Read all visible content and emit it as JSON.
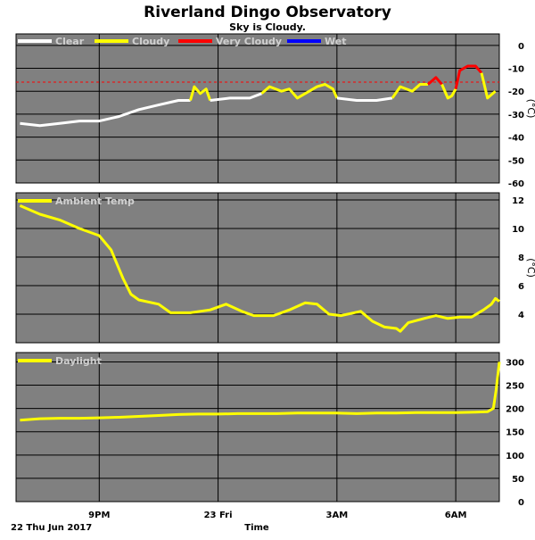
{
  "title": "Riverland Dingo Observatory",
  "subtitle": "Sky is Cloudy.",
  "x_axis": {
    "title": "Time",
    "date_label": "22 Thu Jun 2017",
    "ticks": [
      {
        "label": "9PM",
        "hour": 21
      },
      {
        "label": "23 Fri",
        "hour": 24
      },
      {
        "label": "3AM",
        "hour": 27
      },
      {
        "label": "6AM",
        "hour": 30
      }
    ],
    "range": [
      18.9,
      31.1
    ]
  },
  "colors": {
    "panel_bg": "#808080",
    "grid": "#000000",
    "clear": "#ffffff",
    "cloudy": "#ffff00",
    "very_cloudy": "#ff0000",
    "wet": "#0000ff",
    "ambient": "#ffff00",
    "daylight": "#ffff00",
    "threshold": "#ff0000"
  },
  "chart_data": [
    {
      "type": "line",
      "name": "sky",
      "ylabel": "(°C)",
      "ylim": [
        -60,
        5
      ],
      "yticks": [
        0,
        -10,
        -20,
        -30,
        -40,
        -50,
        -60
      ],
      "grid": true,
      "legend_position": "top-left",
      "legend": [
        "Clear",
        "Cloudy",
        "Very Cloudy",
        "Wet"
      ],
      "threshold": -16,
      "series": [
        {
          "condition": "clear",
          "points": [
            [
              19.0,
              -34
            ],
            [
              19.5,
              -35
            ],
            [
              20.0,
              -34
            ],
            [
              20.5,
              -33
            ],
            [
              21.0,
              -33
            ],
            [
              21.5,
              -31
            ],
            [
              22.0,
              -28
            ],
            [
              22.5,
              -26
            ],
            [
              23.0,
              -24
            ],
            [
              23.3,
              -24
            ]
          ]
        },
        {
          "condition": "cloudy",
          "points": [
            [
              23.3,
              -24
            ],
            [
              23.4,
              -18
            ],
            [
              23.55,
              -21
            ],
            [
              23.7,
              -19
            ],
            [
              23.8,
              -24
            ]
          ]
        },
        {
          "condition": "clear",
          "points": [
            [
              23.8,
              -24
            ],
            [
              24.3,
              -23
            ],
            [
              24.8,
              -23
            ],
            [
              25.1,
              -21
            ]
          ]
        },
        {
          "condition": "cloudy",
          "points": [
            [
              25.1,
              -21
            ],
            [
              25.3,
              -18
            ],
            [
              25.6,
              -20
            ],
            [
              25.8,
              -19
            ],
            [
              26.0,
              -23
            ],
            [
              26.3,
              -20
            ],
            [
              26.5,
              -18
            ],
            [
              26.7,
              -17
            ],
            [
              26.9,
              -19
            ],
            [
              27.0,
              -23
            ]
          ]
        },
        {
          "condition": "clear",
          "points": [
            [
              27.0,
              -23
            ],
            [
              27.5,
              -24
            ],
            [
              28.0,
              -24
            ],
            [
              28.4,
              -23
            ]
          ]
        },
        {
          "condition": "cloudy",
          "points": [
            [
              28.4,
              -23
            ],
            [
              28.6,
              -18
            ],
            [
              28.9,
              -20
            ],
            [
              29.1,
              -17
            ],
            [
              29.3,
              -17
            ]
          ]
        },
        {
          "condition": "very_cloudy",
          "points": [
            [
              29.3,
              -17
            ],
            [
              29.5,
              -14
            ],
            [
              29.65,
              -17
            ]
          ]
        },
        {
          "condition": "cloudy",
          "points": [
            [
              29.65,
              -17
            ],
            [
              29.8,
              -23
            ],
            [
              29.9,
              -22
            ],
            [
              30.0,
              -19
            ]
          ]
        },
        {
          "condition": "very_cloudy",
          "points": [
            [
              30.0,
              -19
            ],
            [
              30.1,
              -11
            ],
            [
              30.3,
              -9
            ],
            [
              30.5,
              -9
            ],
            [
              30.65,
              -12
            ]
          ]
        },
        {
          "condition": "cloudy",
          "points": [
            [
              30.65,
              -12
            ],
            [
              30.8,
              -23
            ],
            [
              31.0,
              -20
            ]
          ]
        }
      ]
    },
    {
      "type": "line",
      "name": "ambient",
      "legend": "Ambient Temp",
      "ylabel": "(°C)",
      "ylim": [
        2,
        12.5
      ],
      "yticks": [
        12,
        10,
        8,
        6,
        4
      ],
      "grid": true,
      "legend_position": "top-left",
      "points": [
        [
          19.0,
          11.6
        ],
        [
          19.5,
          11.0
        ],
        [
          20.0,
          10.6
        ],
        [
          20.5,
          10.0
        ],
        [
          21.0,
          9.5
        ],
        [
          21.3,
          8.5
        ],
        [
          21.6,
          6.5
        ],
        [
          21.8,
          5.4
        ],
        [
          22.0,
          5.0
        ],
        [
          22.5,
          4.7
        ],
        [
          22.8,
          4.1
        ],
        [
          23.3,
          4.1
        ],
        [
          23.8,
          4.3
        ],
        [
          24.2,
          4.7
        ],
        [
          24.6,
          4.2
        ],
        [
          24.9,
          3.9
        ],
        [
          25.4,
          3.9
        ],
        [
          25.8,
          4.3
        ],
        [
          26.2,
          4.8
        ],
        [
          26.5,
          4.7
        ],
        [
          26.8,
          4.0
        ],
        [
          27.1,
          3.9
        ],
        [
          27.6,
          4.2
        ],
        [
          27.9,
          3.5
        ],
        [
          28.2,
          3.1
        ],
        [
          28.5,
          3.0
        ],
        [
          28.6,
          2.8
        ],
        [
          28.8,
          3.4
        ],
        [
          29.2,
          3.7
        ],
        [
          29.5,
          3.9
        ],
        [
          29.8,
          3.7
        ],
        [
          30.1,
          3.8
        ],
        [
          30.4,
          3.8
        ],
        [
          30.7,
          4.3
        ],
        [
          30.9,
          4.7
        ],
        [
          31.0,
          5.1
        ],
        [
          31.1,
          4.9
        ]
      ]
    },
    {
      "type": "line",
      "name": "daylight",
      "legend": "Daylight",
      "ylim": [
        0,
        320
      ],
      "yticks": [
        300,
        250,
        200,
        150,
        100,
        50,
        0
      ],
      "grid": true,
      "legend_position": "top-left",
      "points": [
        [
          19.0,
          175
        ],
        [
          19.5,
          178
        ],
        [
          20.0,
          179
        ],
        [
          20.5,
          179
        ],
        [
          21.0,
          180
        ],
        [
          21.5,
          181
        ],
        [
          22.0,
          183
        ],
        [
          22.5,
          185
        ],
        [
          23.0,
          187
        ],
        [
          23.5,
          188
        ],
        [
          24.0,
          188
        ],
        [
          24.5,
          189
        ],
        [
          25.0,
          189
        ],
        [
          25.5,
          189
        ],
        [
          26.0,
          190
        ],
        [
          26.5,
          190
        ],
        [
          27.0,
          190
        ],
        [
          27.5,
          189
        ],
        [
          28.0,
          190
        ],
        [
          28.5,
          190
        ],
        [
          29.0,
          191
        ],
        [
          29.5,
          191
        ],
        [
          30.0,
          191
        ],
        [
          30.5,
          192
        ],
        [
          30.8,
          193
        ],
        [
          30.95,
          200
        ],
        [
          31.02,
          240
        ],
        [
          31.1,
          300
        ]
      ]
    }
  ]
}
